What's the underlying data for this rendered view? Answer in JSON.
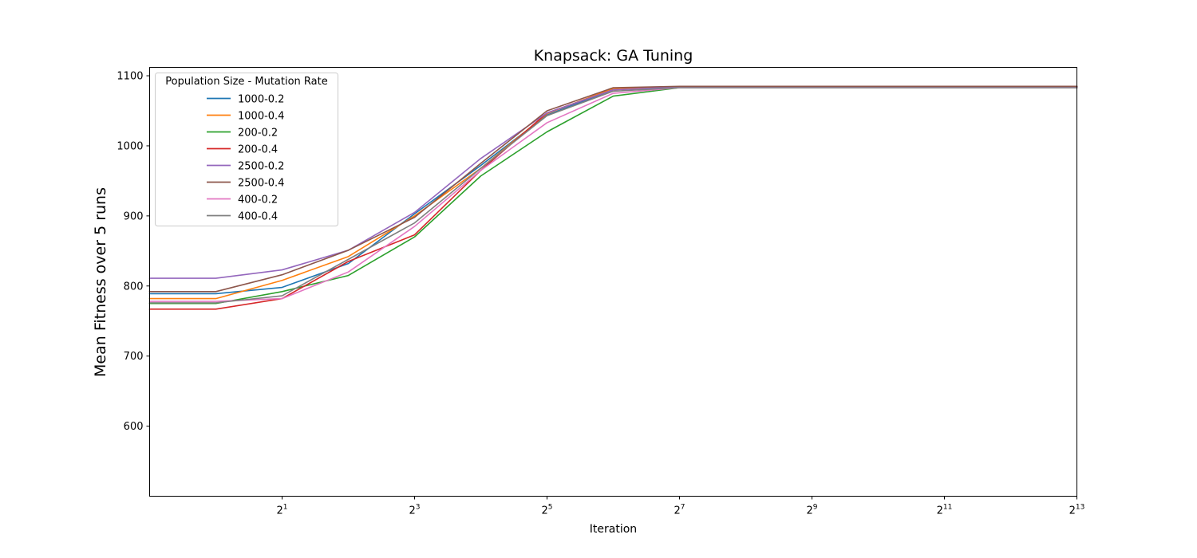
{
  "chart_data": {
    "type": "line",
    "title": "Knapsack: GA Tuning",
    "xlabel": "Iteration",
    "ylabel": "Mean Fitness over 5 runs",
    "xscale": "log2",
    "xlim": [
      0.5,
      8192
    ],
    "ylim": [
      500,
      1112
    ],
    "yticks": [
      600,
      700,
      800,
      900,
      1000,
      1100
    ],
    "xticks": [
      {
        "value": 2,
        "base": "2",
        "exp": "1"
      },
      {
        "value": 8,
        "base": "2",
        "exp": "3"
      },
      {
        "value": 32,
        "base": "2",
        "exp": "5"
      },
      {
        "value": 128,
        "base": "2",
        "exp": "7"
      },
      {
        "value": 512,
        "base": "2",
        "exp": "9"
      },
      {
        "value": 2048,
        "base": "2",
        "exp": "11"
      },
      {
        "value": 8192,
        "base": "2",
        "exp": "13"
      }
    ],
    "grid": false,
    "legend": {
      "title": "Population Size - Mutation Rate",
      "placement": "upper-left"
    },
    "x": [
      0.5,
      1,
      2,
      4,
      8,
      16,
      32,
      64,
      128,
      256,
      512,
      1024,
      2048,
      4096,
      8192
    ],
    "series": [
      {
        "name": "1000-0.2",
        "color": "#1f77b4",
        "values": [
          789,
          789,
          798,
          832,
          903,
          972,
          1044,
          1080,
          1084,
          1084,
          1084,
          1084,
          1084,
          1084,
          1084
        ]
      },
      {
        "name": "1000-0.4",
        "color": "#ff7f0e",
        "values": [
          782,
          782,
          808,
          842,
          900,
          968,
          1046,
          1082,
          1084,
          1084,
          1084,
          1084,
          1084,
          1084,
          1084
        ]
      },
      {
        "name": "200-0.2",
        "color": "#2ca02c",
        "values": [
          775,
          775,
          792,
          815,
          870,
          957,
          1020,
          1071,
          1083,
          1083,
          1083,
          1083,
          1083,
          1083,
          1083
        ]
      },
      {
        "name": "200-0.4",
        "color": "#d62728",
        "values": [
          767,
          767,
          782,
          835,
          873,
          965,
          1047,
          1080,
          1084,
          1084,
          1084,
          1084,
          1084,
          1084,
          1084
        ]
      },
      {
        "name": "2500-0.2",
        "color": "#9467bd",
        "values": [
          811,
          811,
          823,
          851,
          905,
          982,
          1047,
          1080,
          1084,
          1084,
          1084,
          1084,
          1084,
          1084,
          1084
        ]
      },
      {
        "name": "2500-0.4",
        "color": "#8c564b",
        "values": [
          792,
          792,
          816,
          851,
          898,
          975,
          1050,
          1083,
          1085,
          1085,
          1085,
          1085,
          1085,
          1085,
          1085
        ]
      },
      {
        "name": "400-0.2",
        "color": "#e377c2",
        "values": [
          778,
          778,
          782,
          820,
          885,
          965,
          1033,
          1075,
          1083,
          1083,
          1083,
          1083,
          1083,
          1083,
          1083
        ]
      },
      {
        "name": "400-0.4",
        "color": "#7f7f7f",
        "values": [
          776,
          776,
          786,
          838,
          890,
          968,
          1043,
          1078,
          1083,
          1083,
          1083,
          1083,
          1083,
          1083,
          1083
        ]
      }
    ]
  }
}
